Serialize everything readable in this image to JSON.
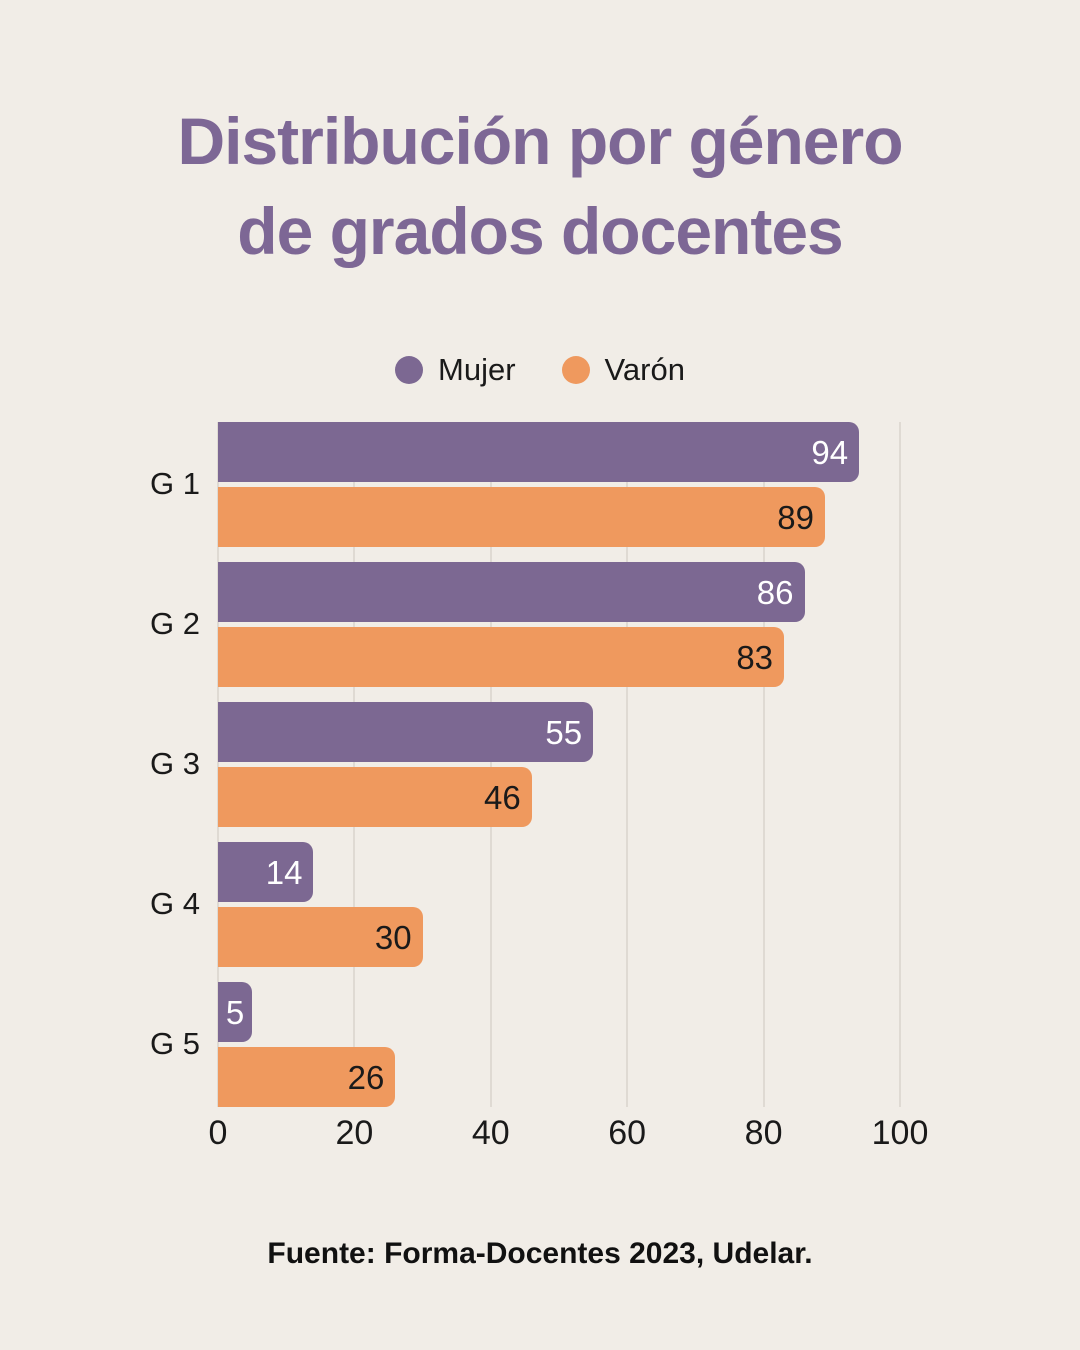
{
  "page": {
    "title_line1": "Distribución por género",
    "title_line2": "de grados docentes",
    "footer": "Fuente: Forma-Docentes 2023, Udelar.",
    "colors": {
      "background": "#F1EDE7",
      "title": "#7D6795",
      "text": "#1A1A1A",
      "gridline": "#DFDAD3"
    }
  },
  "chart_data": {
    "type": "bar",
    "orientation": "horizontal",
    "title": "Distribución por género de grados docentes",
    "source": "Fuente: Forma-Docentes 2023, Udelar.",
    "categories": [
      "G 1",
      "G 2",
      "G 3",
      "G 4",
      "G 5"
    ],
    "series": [
      {
        "name": "Mujer",
        "color": "#7C6892",
        "value_label_color": "#FFFFFF",
        "values": [
          94,
          86,
          55,
          14,
          5
        ]
      },
      {
        "name": "Varón",
        "color": "#EF995E",
        "value_label_color": "#1A1A1A",
        "values": [
          89,
          83,
          46,
          30,
          26
        ]
      }
    ],
    "xlim": [
      0,
      100
    ],
    "x_ticks": [
      0,
      20,
      40,
      60,
      80,
      100
    ],
    "grid": "vertical-gridlines-only",
    "legend_position": "top-center"
  }
}
